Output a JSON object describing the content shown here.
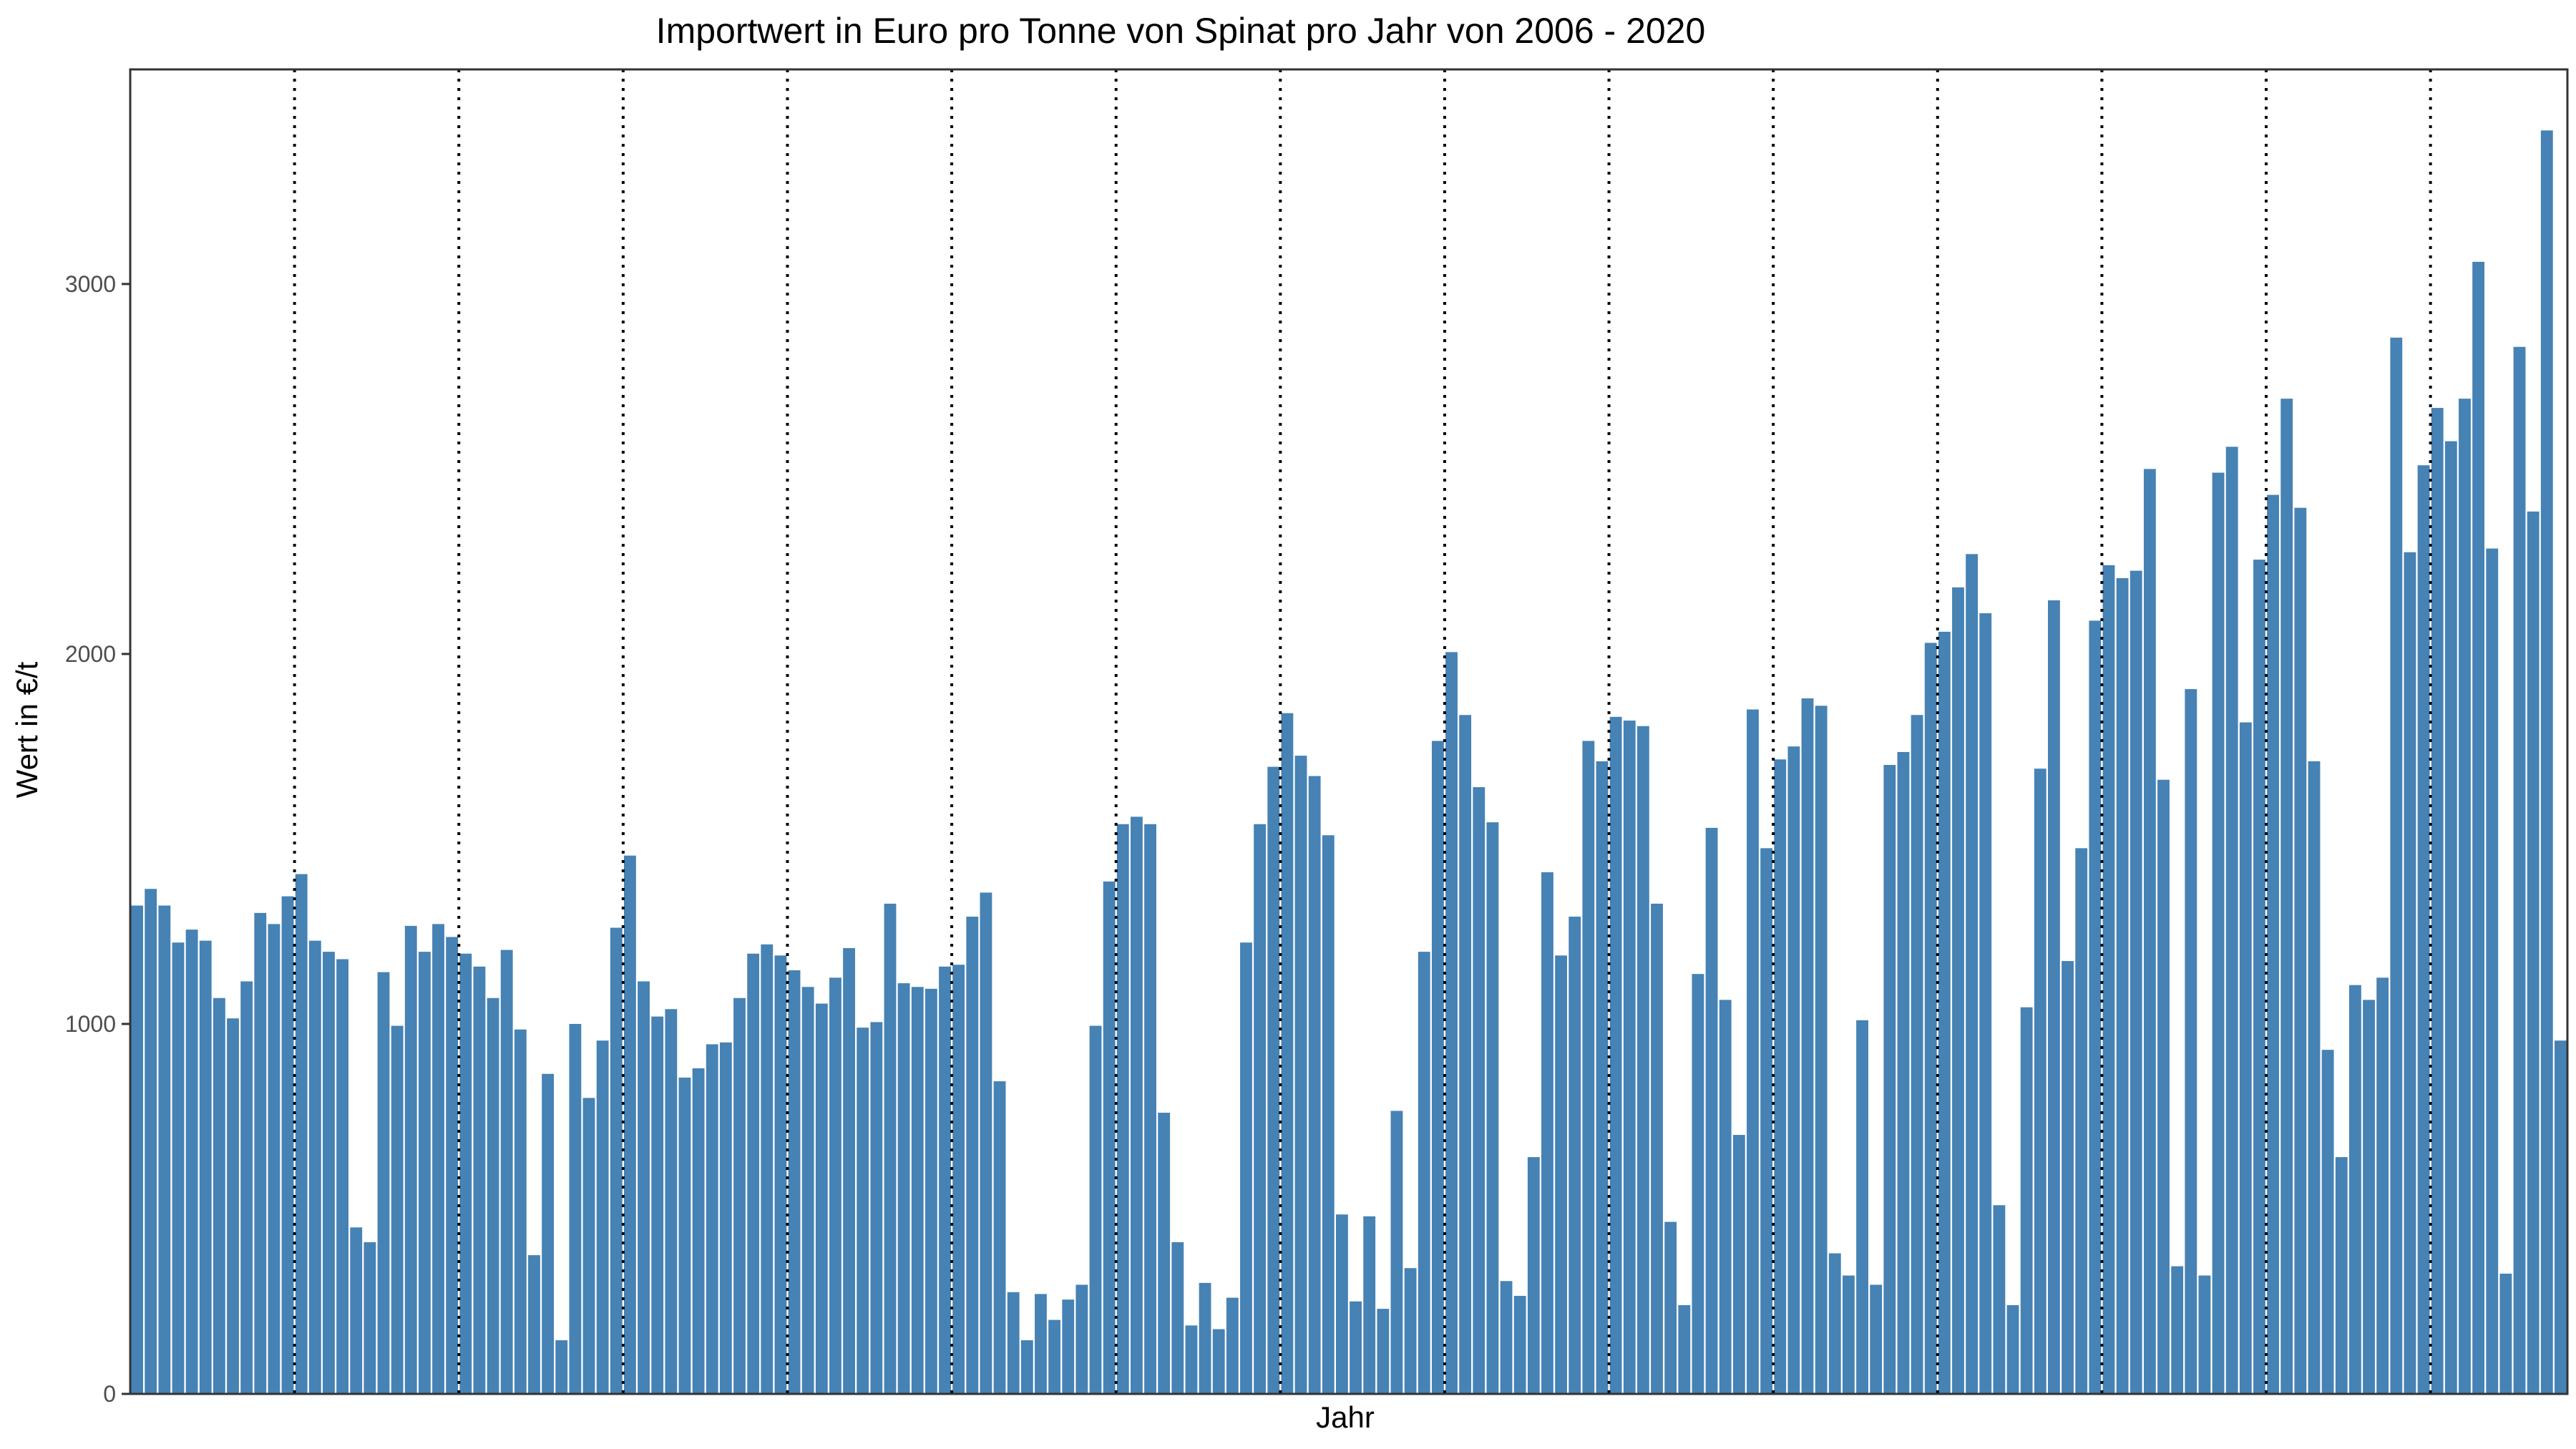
{
  "chart_data": {
    "type": "bar",
    "title": "Importwert in Euro pro Tonne von Spinat pro Jahr von 2006 - 2020",
    "xlabel": "Jahr",
    "ylabel": "Wert in €/t",
    "ylim": [
      0,
      3580
    ],
    "yticks": [
      0,
      1000,
      2000,
      3000
    ],
    "grid": false,
    "legend": "none",
    "bar_color": "#4682B4",
    "separator_style": "dotted",
    "separators_after_index": [
      11,
      23,
      35,
      47,
      59,
      71,
      83,
      95,
      107,
      119,
      131,
      143,
      155,
      167
    ],
    "values": [
      1320,
      1365,
      1320,
      1220,
      1255,
      1225,
      1070,
      1015,
      1115,
      1300,
      1270,
      1345,
      1405,
      1225,
      1195,
      1175,
      450,
      410,
      1140,
      995,
      1265,
      1195,
      1270,
      1235,
      1190,
      1155,
      1070,
      1200,
      985,
      375,
      865,
      145,
      1000,
      800,
      955,
      1260,
      1455,
      1115,
      1020,
      1040,
      855,
      880,
      945,
      950,
      1070,
      1190,
      1215,
      1185,
      1145,
      1100,
      1055,
      1125,
      1205,
      990,
      1005,
      1325,
      1110,
      1100,
      1095,
      1155,
      1160,
      1290,
      1355,
      845,
      275,
      145,
      270,
      200,
      255,
      295,
      995,
      1385,
      1540,
      1560,
      1540,
      760,
      410,
      185,
      300,
      175,
      260,
      1220,
      1540,
      1695,
      1840,
      1725,
      1670,
      1510,
      485,
      250,
      480,
      230,
      765,
      340,
      1195,
      1765,
      2005,
      1835,
      1640,
      1545,
      305,
      265,
      640,
      1410,
      1185,
      1290,
      1765,
      1710,
      1830,
      1820,
      1805,
      1325,
      465,
      240,
      1135,
      1530,
      1065,
      700,
      1850,
      1475,
      1715,
      1750,
      1880,
      1860,
      380,
      320,
      1010,
      295,
      1700,
      1735,
      1835,
      2030,
      2060,
      2180,
      2270,
      2110,
      510,
      240,
      1045,
      1690,
      2145,
      1170,
      1475,
      2090,
      2240,
      2205,
      2225,
      2500,
      1660,
      345,
      1905,
      320,
      2490,
      2560,
      1815,
      2255,
      2430,
      2690,
      2395,
      1710,
      930,
      640,
      1105,
      1065,
      1125,
      2855,
      2275,
      2510,
      2665,
      2575,
      2690,
      3060,
      2285,
      325,
      2830,
      2385,
      3415,
      955
    ]
  }
}
